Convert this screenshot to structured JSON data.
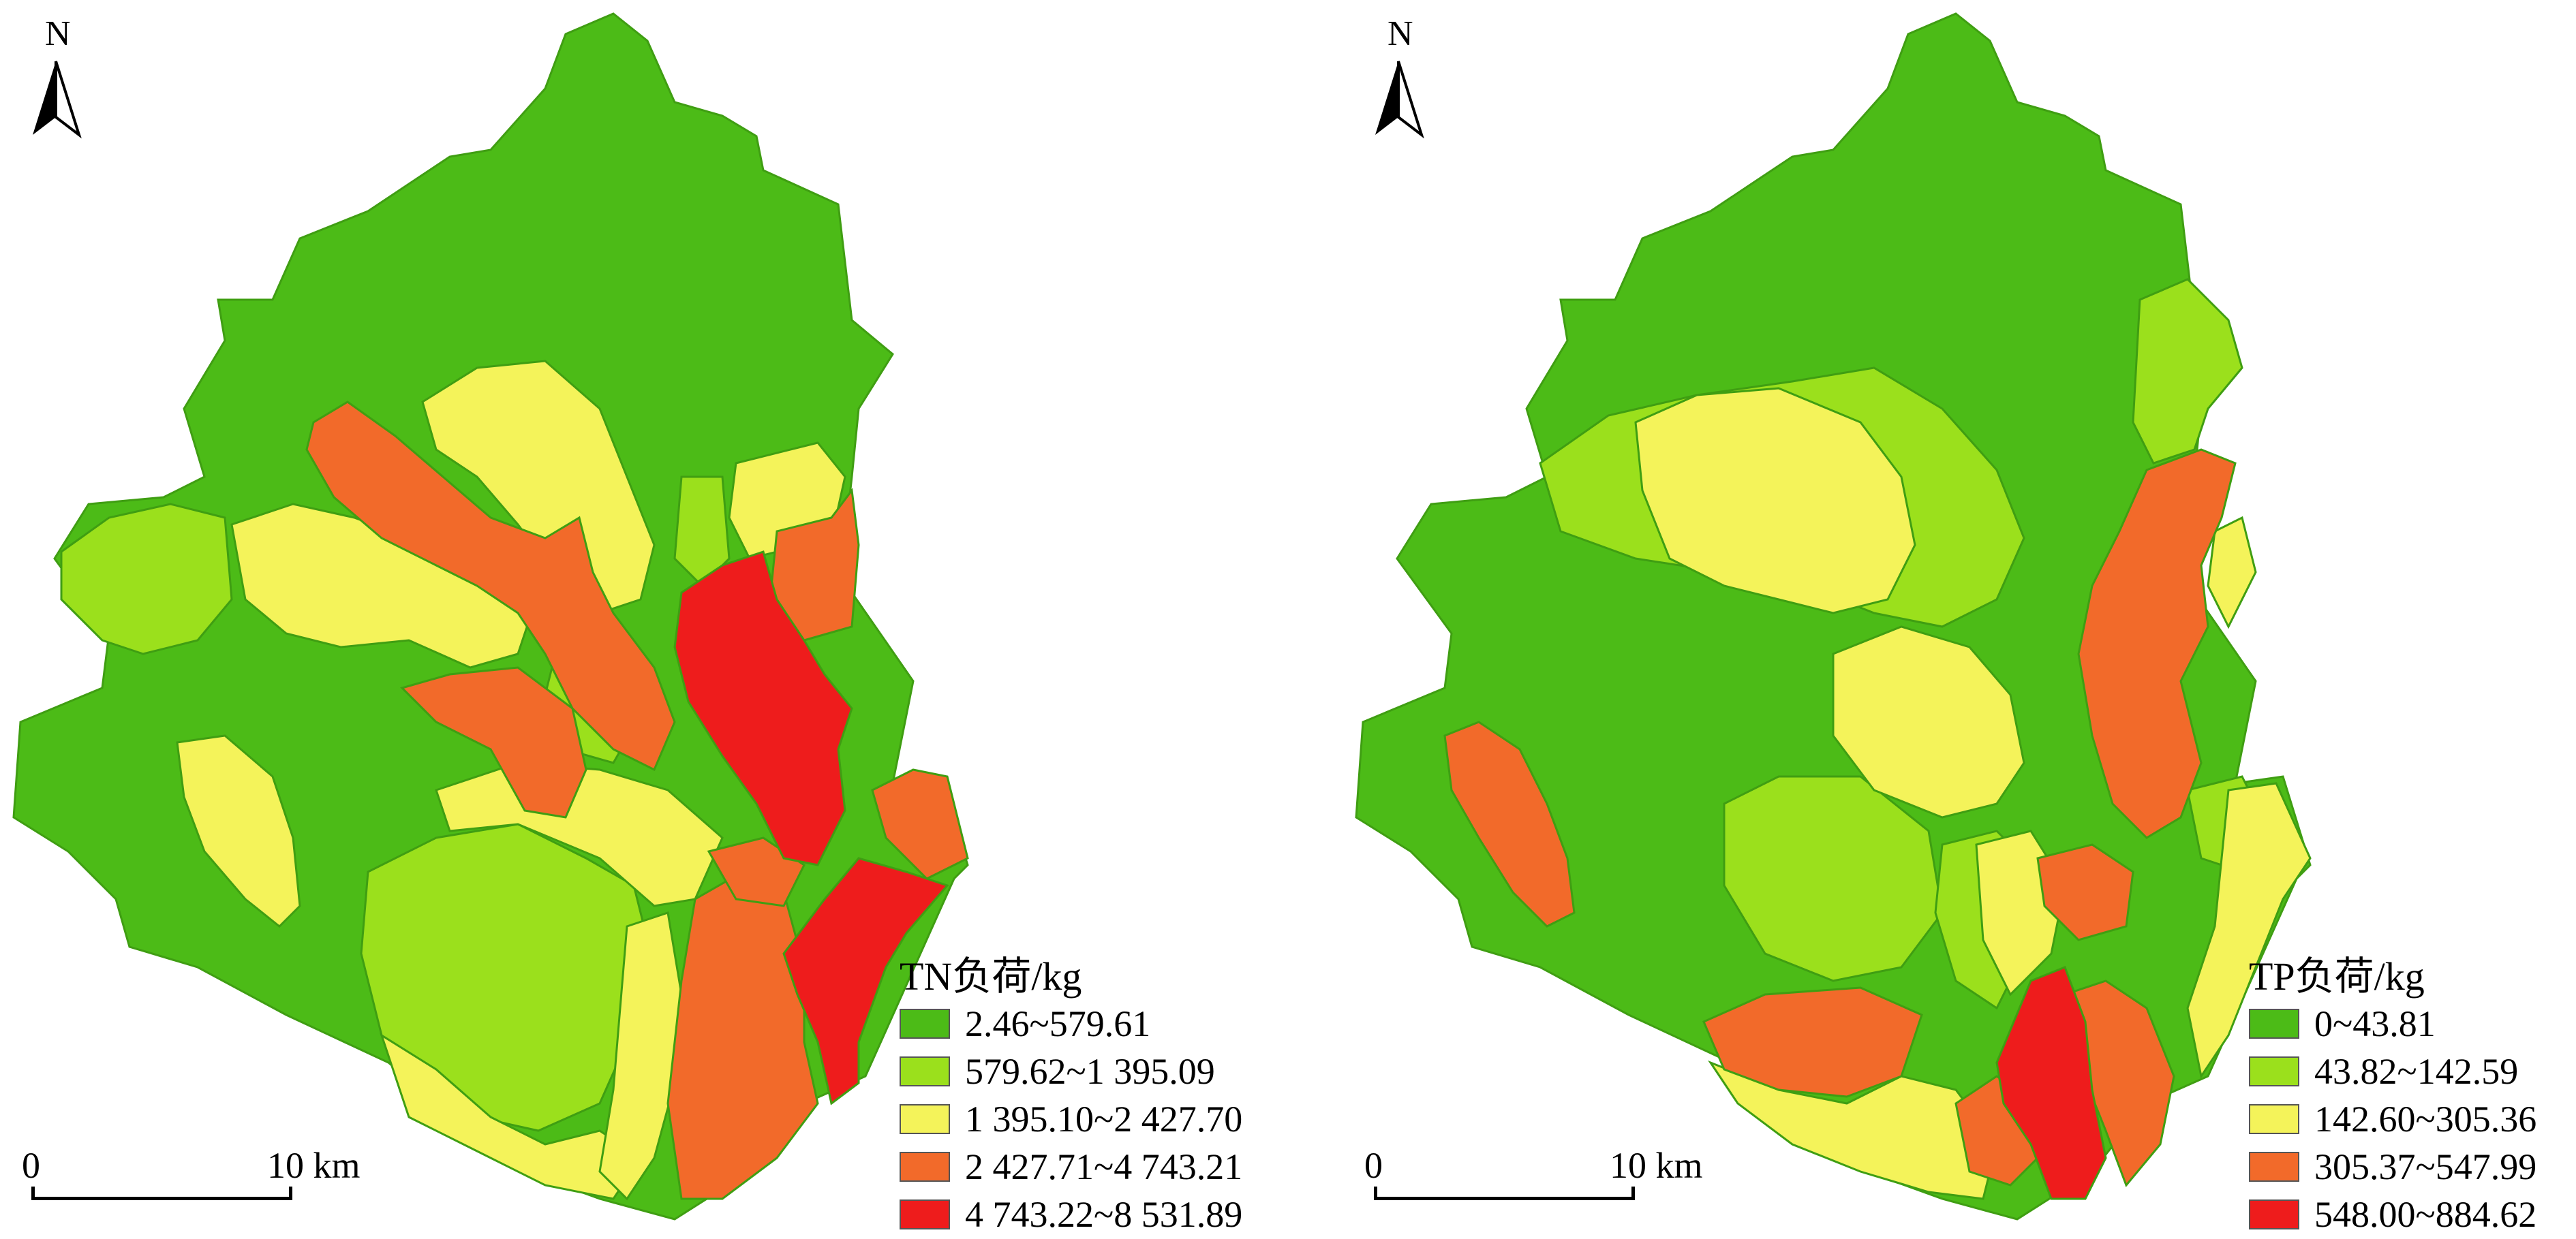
{
  "maps": [
    {
      "north": "N",
      "scale": {
        "start": "0",
        "end": "10 km"
      },
      "legend": {
        "title": "TN负荷/kg",
        "classes": [
          {
            "label": "2.46~579.61",
            "color": "#4cbb17"
          },
          {
            "label": "579.62~1 395.09",
            "color": "#9be01c"
          },
          {
            "label": "1 395.10~2 427.70",
            "color": "#f4f35a"
          },
          {
            "label": "2 427.71~4 743.21",
            "color": "#f26a2a"
          },
          {
            "label": "4 743.22~8 531.89",
            "color": "#ee1c1c"
          }
        ]
      }
    },
    {
      "north": "N",
      "scale": {
        "start": "0",
        "end": "10 km"
      },
      "legend": {
        "title": "TP负荷/kg",
        "classes": [
          {
            "label": "0~43.81",
            "color": "#4cbb17"
          },
          {
            "label": "43.82~142.59",
            "color": "#9be01c"
          },
          {
            "label": "142.60~305.36",
            "color": "#f4f35a"
          },
          {
            "label": "305.37~547.99",
            "color": "#f26a2a"
          },
          {
            "label": "548.00~884.62",
            "color": "#ee1c1c"
          }
        ]
      }
    }
  ]
}
